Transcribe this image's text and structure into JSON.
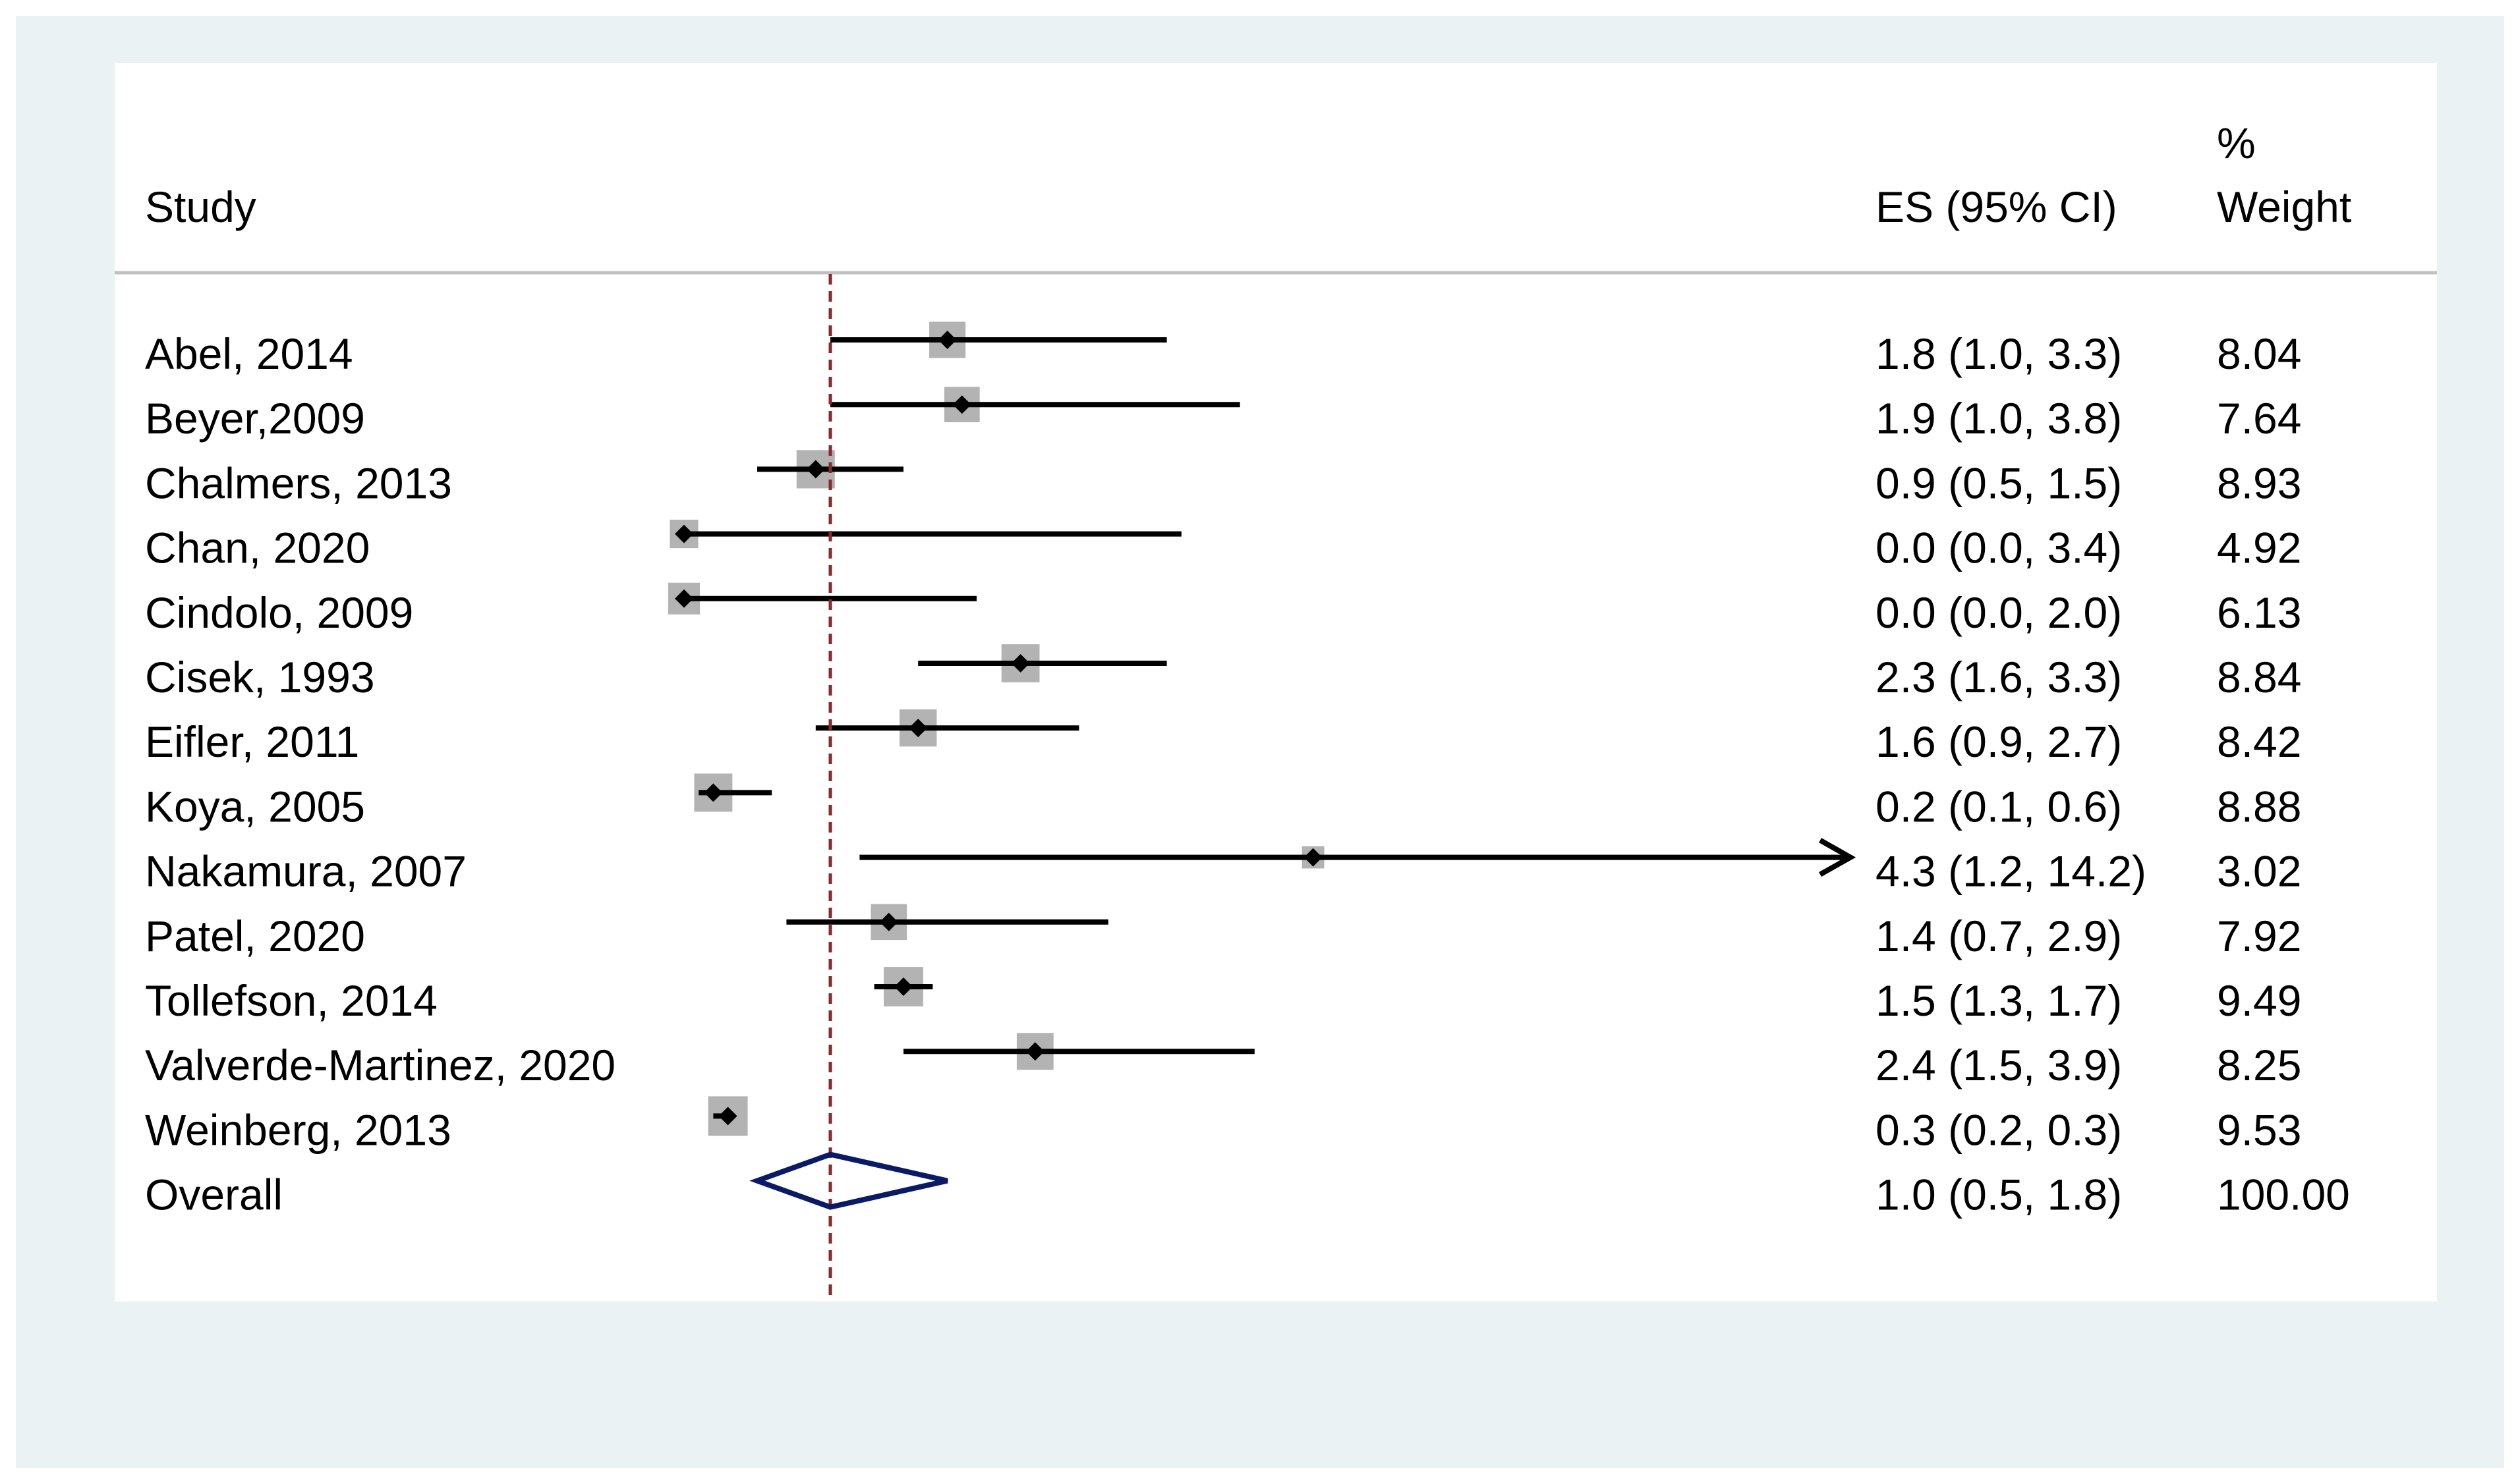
{
  "chart_data": {
    "type": "forest",
    "columns": {
      "study": "Study",
      "es": "ES (95% CI)",
      "weight_line1": "%",
      "weight_line2": "Weight"
    },
    "null_value": 1.0,
    "studies": [
      {
        "label": "Abel, 2014",
        "es_text": "1.8 (1.0, 3.3)",
        "weight_text": "8.04",
        "es": 1.8,
        "lo": 1.0,
        "hi": 3.3,
        "weight": 8.04
      },
      {
        "label": "Beyer,2009",
        "es_text": "1.9 (1.0, 3.8)",
        "weight_text": "7.64",
        "es": 1.9,
        "lo": 1.0,
        "hi": 3.8,
        "weight": 7.64
      },
      {
        "label": "Chalmers, 2013",
        "es_text": "0.9 (0.5, 1.5)",
        "weight_text": "8.93",
        "es": 0.9,
        "lo": 0.5,
        "hi": 1.5,
        "weight": 8.93
      },
      {
        "label": "Chan, 2020",
        "es_text": "0.0 (0.0, 3.4)",
        "weight_text": "4.92",
        "es": 0.0,
        "lo": 0.0,
        "hi": 3.4,
        "weight": 4.92
      },
      {
        "label": "Cindolo, 2009",
        "es_text": "0.0 (0.0, 2.0)",
        "weight_text": "6.13",
        "es": 0.0,
        "lo": 0.0,
        "hi": 2.0,
        "weight": 6.13
      },
      {
        "label": "Cisek, 1993",
        "es_text": "2.3 (1.6, 3.3)",
        "weight_text": "8.84",
        "es": 2.3,
        "lo": 1.6,
        "hi": 3.3,
        "weight": 8.84
      },
      {
        "label": "Eifler, 2011",
        "es_text": "1.6 (0.9, 2.7)",
        "weight_text": "8.42",
        "es": 1.6,
        "lo": 0.9,
        "hi": 2.7,
        "weight": 8.42
      },
      {
        "label": "Koya, 2005",
        "es_text": "0.2 (0.1, 0.6)",
        "weight_text": "8.88",
        "es": 0.2,
        "lo": 0.1,
        "hi": 0.6,
        "weight": 8.88
      },
      {
        "label": "Nakamura, 2007",
        "es_text": "4.3 (1.2, 14.2)",
        "weight_text": "3.02",
        "es": 4.3,
        "lo": 1.2,
        "hi": 14.2,
        "weight": 3.02
      },
      {
        "label": "Patel, 2020",
        "es_text": "1.4 (0.7, 2.9)",
        "weight_text": "7.92",
        "es": 1.4,
        "lo": 0.7,
        "hi": 2.9,
        "weight": 7.92
      },
      {
        "label": "Tollefson, 2014",
        "es_text": "1.5 (1.3, 1.7)",
        "weight_text": "9.49",
        "es": 1.5,
        "lo": 1.3,
        "hi": 1.7,
        "weight": 9.49
      },
      {
        "label": "Valverde-Martinez, 2020",
        "es_text": "2.4 (1.5, 3.9)",
        "weight_text": "8.25",
        "es": 2.4,
        "lo": 1.5,
        "hi": 3.9,
        "weight": 8.25
      },
      {
        "label": "Weinberg, 2013",
        "es_text": "0.3 (0.2, 0.3)",
        "weight_text": "9.53",
        "es": 0.3,
        "lo": 0.2,
        "hi": 0.3,
        "weight": 9.53
      }
    ],
    "overall": {
      "label": "Overall",
      "es_text": "1.0 (0.5, 1.8)",
      "weight_text": "100.00",
      "es": 1.0,
      "lo": 0.5,
      "hi": 1.8
    },
    "colors": {
      "outer_background": "#eaf2f3",
      "panel_background": "#ffffff",
      "ci_line": "#000000",
      "weight_box": "#b3b3b3",
      "point": "#000000",
      "null_line": "#8b2a2a",
      "overall_diamond": "#0a1a6b",
      "header_rule": "#c0c0c0"
    }
  }
}
